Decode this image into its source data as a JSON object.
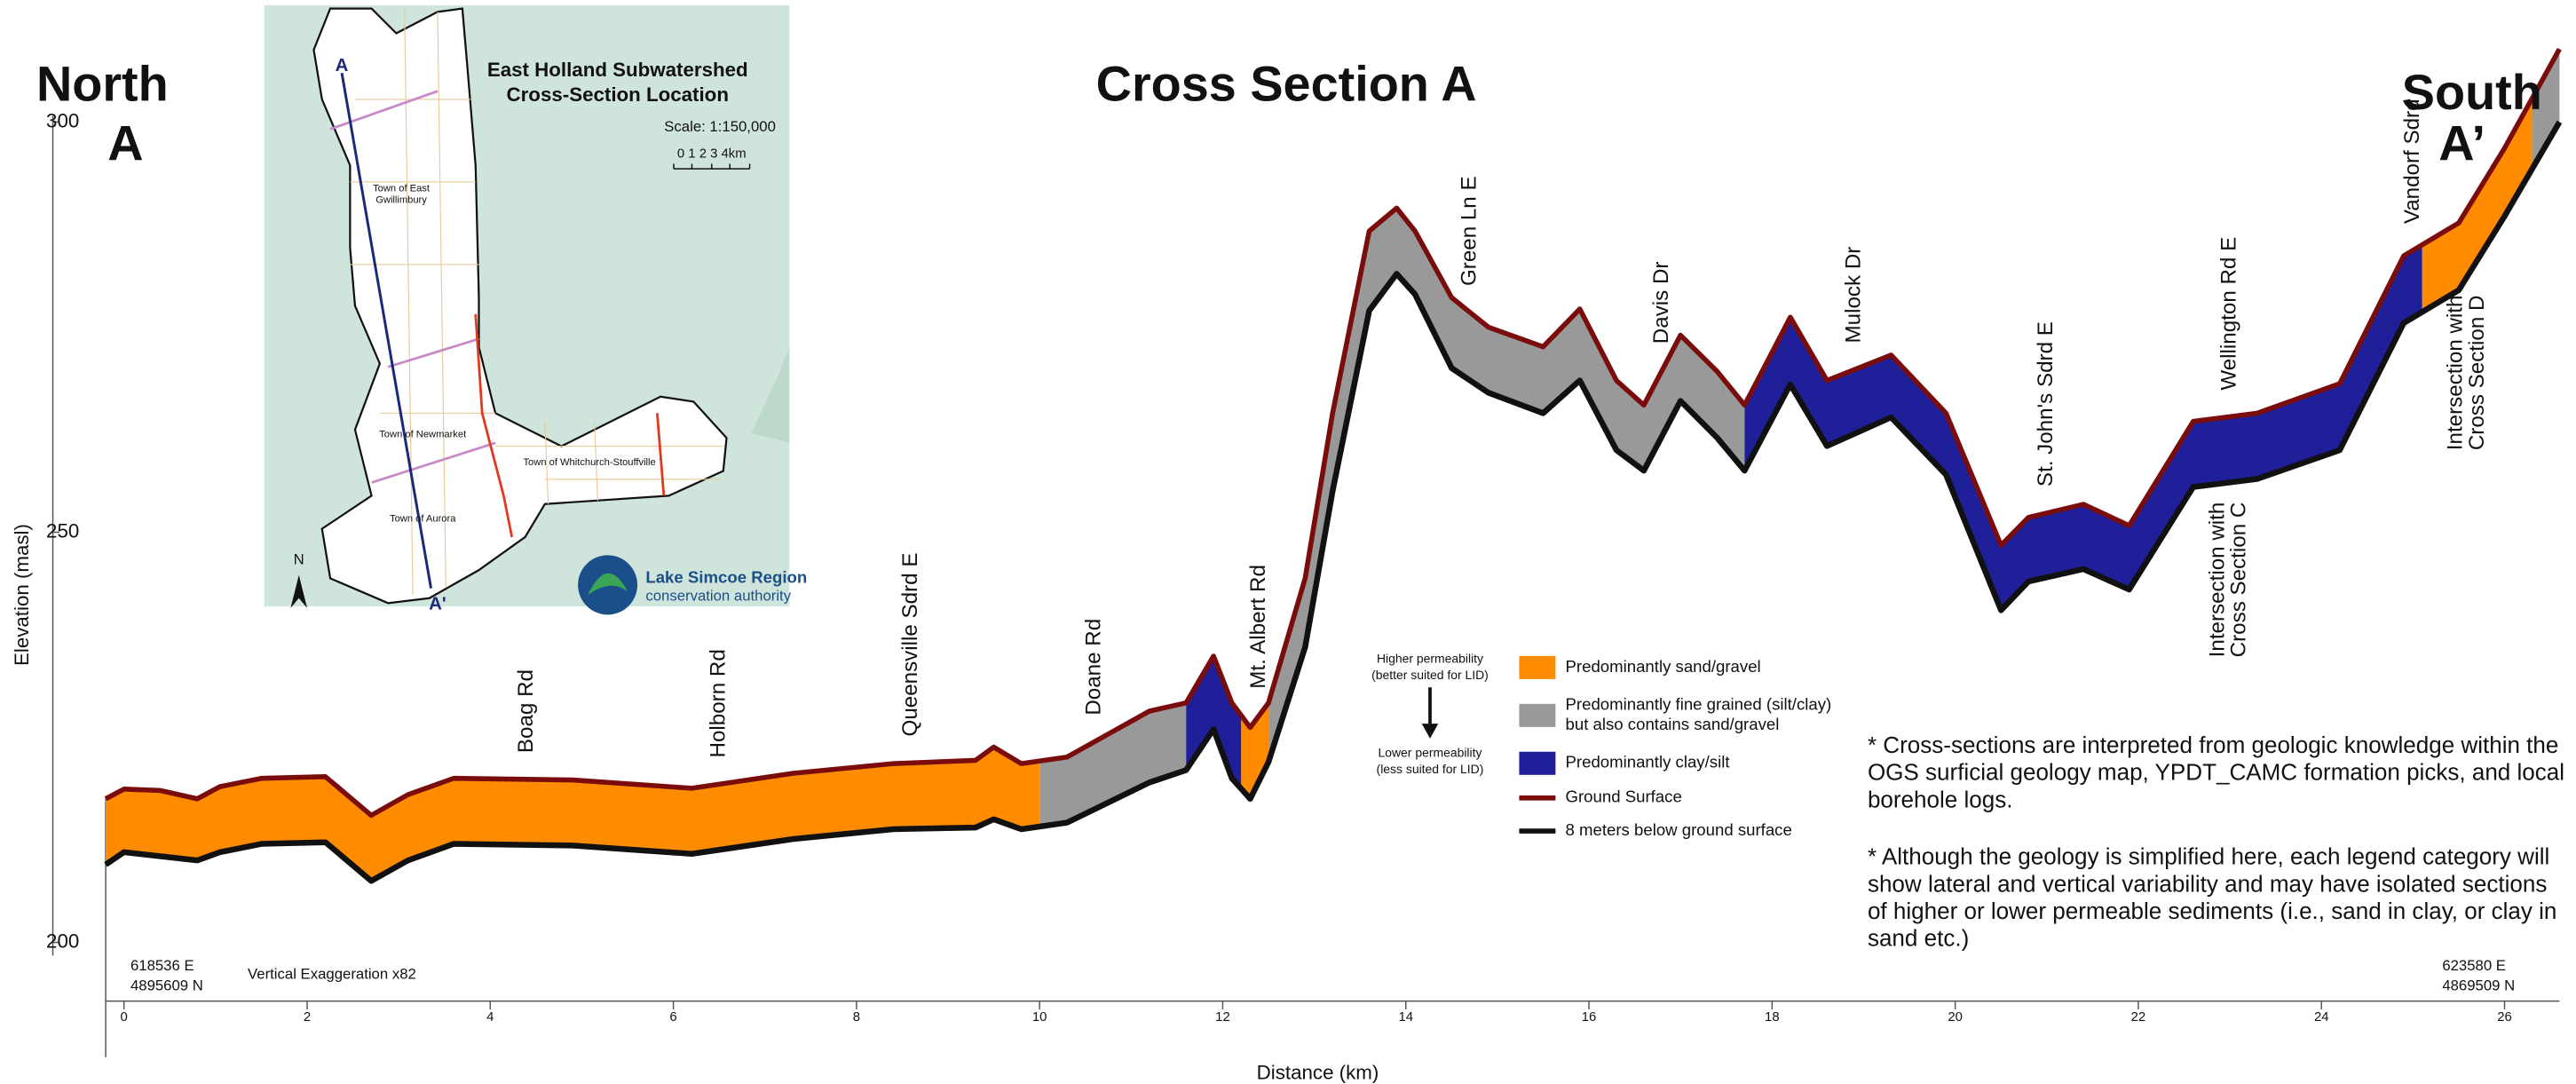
{
  "chart_data": {
    "type": "cross-section",
    "title": "Cross Section A",
    "y_label": "Elevation (masl)",
    "x_label": "Distance (km)",
    "left_end": [
      "North",
      "A"
    ],
    "right_end": [
      "South",
      "A’"
    ],
    "left_coords": [
      "618536 E",
      "4895609 N"
    ],
    "right_coords": [
      "623580 E",
      "4869509 N"
    ],
    "exaggeration": "Vertical Exaggeration x82",
    "xlim": [
      -0.2,
      26.6
    ],
    "ylim": [
      186,
      310
    ],
    "xticks": [
      0,
      2,
      4,
      6,
      8,
      10,
      12,
      14,
      16,
      18,
      20,
      22,
      24,
      26
    ],
    "yticks": [
      200,
      250,
      300
    ],
    "x": [
      -0.2,
      0,
      0.4,
      0.8,
      1.05,
      1.5,
      2.2,
      2.7,
      3.1,
      3.6,
      4.9,
      6.2,
      7.3,
      8.4,
      9.3,
      9.5,
      9.8,
      10.3,
      11.2,
      11.6,
      11.9,
      12.1,
      12.3,
      12.5,
      12.9,
      13.2,
      13.6,
      13.9,
      14.1,
      14.5,
      14.9,
      15.5,
      15.9,
      16.3,
      16.6,
      17,
      17.4,
      17.7,
      18.2,
      18.6,
      19.3,
      19.9,
      20.5,
      20.8,
      21.4,
      21.9,
      22.6,
      23.3,
      24.2,
      24.9,
      25.5,
      26,
      26.6
    ],
    "series": [
      {
        "name": "Ground Surface",
        "color": "#7a0c0c",
        "values": [
          217.5,
          218.7,
          218.5,
          217.5,
          219,
          220,
          220.2,
          215.5,
          218,
          220,
          219.8,
          218.8,
          220.6,
          221.8,
          222.2,
          223.8,
          221.8,
          222.6,
          228.2,
          229.2,
          234.9,
          229.2,
          226.2,
          229.2,
          244.4,
          264.5,
          286.7,
          289.5,
          286.7,
          278.6,
          275,
          272.6,
          277.2,
          268.5,
          265.5,
          274,
          269.6,
          265.5,
          276.2,
          268.5,
          271.6,
          264.5,
          248.4,
          251.8,
          253.4,
          250.8,
          263.5,
          264.5,
          268.1,
          283.7,
          287.7,
          296.8,
          308.9
        ]
      },
      {
        "name": "8 meters below ground surface",
        "color": "#111111",
        "values": [
          209.5,
          211,
          210.5,
          210,
          211,
          212,
          212.2,
          207.5,
          210,
          212,
          211.8,
          210.8,
          212.6,
          213.8,
          214,
          215,
          213.8,
          214.6,
          219.5,
          221,
          226,
          220,
          217.5,
          222,
          236,
          255,
          277,
          281.5,
          279,
          270,
          267,
          264.5,
          268.5,
          260,
          257.5,
          266,
          261.5,
          257.5,
          268,
          260.5,
          264,
          257,
          240.5,
          244,
          245.5,
          243,
          255.5,
          256.5,
          260,
          275.5,
          279.5,
          288.5,
          300
        ]
      }
    ],
    "layers": [
      {
        "name": "Predominantly sand/gravel",
        "color": "#ff8c00",
        "ranges": [
          [
            -0.2,
            10
          ],
          [
            12.2,
            12.5
          ],
          [
            25.1,
            26.3
          ]
        ]
      },
      {
        "name": [
          "Predominantly fine grained (silt/clay)",
          "but also contains sand/gravel"
        ],
        "color": "#999999",
        "ranges": [
          [
            10,
            11.6
          ],
          [
            12.5,
            17.7
          ],
          [
            26.3,
            26.6
          ]
        ]
      },
      {
        "name": "Predominantly clay/silt",
        "color": "#1f1f99",
        "ranges": [
          [
            11.6,
            12.2
          ],
          [
            17.7,
            25.1
          ]
        ]
      }
    ],
    "permeability": {
      "high": [
        "Higher permeability",
        "(better suited for LID)"
      ],
      "low": [
        "Lower permeability",
        "(less suited for LID)"
      ]
    },
    "roads": [
      {
        "label": "Boag Rd",
        "x": 4.4
      },
      {
        "label": "Holborn Rd",
        "x": 6.5
      },
      {
        "label": "Queensville Sdrd E",
        "x": 8.6
      },
      {
        "label": "Doane Rd",
        "x": 10.6
      },
      {
        "label": "Mt. Albert Rd",
        "x": 12.4
      },
      {
        "label": "Green Ln E",
        "x": 14.7
      },
      {
        "label": "Davis Dr",
        "x": 16.8
      },
      {
        "label": "Mulock Dr",
        "x": 18.9
      },
      {
        "label": "St. John's Sdrd E",
        "x": 21.0
      },
      {
        "label": "Wellington Rd E",
        "x": 23.0
      },
      {
        "label": "Vandorf Sdrd",
        "x": 25.0
      }
    ],
    "intersections": [
      {
        "label": [
          "Intersection with",
          "Cross Section C"
        ],
        "x": 23.0
      },
      {
        "label": [
          "Intersection with",
          "Cross Section D"
        ],
        "x": 25.6
      }
    ],
    "notes": [
      [
        "* Cross-sections are interpreted from geologic knowledge within the",
        "OGS surficial geology map, YPDT_CAMC formation picks, and local",
        " borehole logs."
      ],
      [
        "* Although the geology is simplified here, each legend category will",
        "show lateral and vertical variability and may have isolated sections",
        "of higher or lower permeable sediments (i.e., sand in clay, or clay in",
        "sand etc.)"
      ]
    ]
  },
  "inset": {
    "title": [
      "East Holland Subwatershed",
      "Cross-Section Location"
    ],
    "scale": "Scale:  1:150,000",
    "scale_bar": "0  1  2  3  4km",
    "start": "A",
    "end": "A'",
    "towns": [
      "Town of East",
      "Gwillimbury",
      "Town of Newmarket",
      "Town of Whitchurch-Stouffville",
      "Town of Aurora"
    ],
    "north": "N",
    "logo": [
      "Lake Simcoe Region",
      "conservation authority"
    ]
  }
}
